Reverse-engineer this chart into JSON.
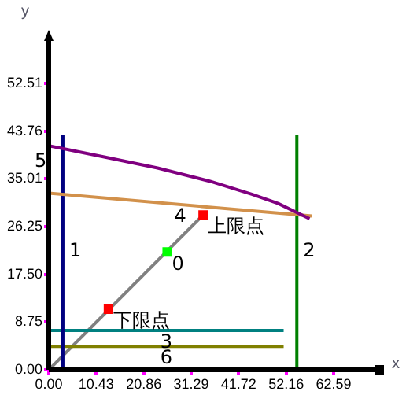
{
  "chart_data": {
    "type": "line",
    "xlabel": "x",
    "ylabel": "y",
    "xlim": [
      0,
      72.6
    ],
    "ylim": [
      0,
      60.6
    ],
    "xticks": [
      {
        "value": 0,
        "label": "0.00"
      },
      {
        "value": 10.43,
        "label": "10.43"
      },
      {
        "value": 20.86,
        "label": "20.86"
      },
      {
        "value": 31.29,
        "label": "31.29"
      },
      {
        "value": 41.72,
        "label": "41.72"
      },
      {
        "value": 52.16,
        "label": "52.16"
      },
      {
        "value": 62.59,
        "label": "62.59"
      }
    ],
    "yticks": [
      {
        "value": 0,
        "label": "0.00"
      },
      {
        "value": 8.75,
        "label": "8.75"
      },
      {
        "value": 17.5,
        "label": "17.50"
      },
      {
        "value": 26.25,
        "label": "26.25"
      },
      {
        "value": 35.01,
        "label": "35.01"
      },
      {
        "value": 43.76,
        "label": "43.76"
      },
      {
        "value": 52.51,
        "label": "52.51"
      }
    ],
    "grid": false,
    "legend": false,
    "marker": "none",
    "series": [
      {
        "color": "#800080",
        "x": [
          0,
          12.4,
          23.9,
          35.3,
          44.6,
          50.4,
          57.3
        ],
        "values": [
          41.1,
          39.0,
          37.0,
          34.6,
          32.2,
          30.5,
          27.7
        ]
      },
      {
        "name": "4",
        "color": "#d2914b",
        "x": [
          0,
          57.8
        ],
        "values": [
          32.4,
          28.2
        ]
      },
      {
        "name": "1",
        "color": "#000080",
        "x": [
          3.1,
          3.1
        ],
        "values": [
          0.5,
          43
        ]
      },
      {
        "name": "2",
        "color": "#008000",
        "x": [
          54.5,
          54.5
        ],
        "values": [
          0.5,
          43
        ]
      },
      {
        "name": "3",
        "color": "#008080",
        "x": [
          0,
          51.6
        ],
        "values": [
          7.2,
          7.2
        ]
      },
      {
        "name": "6",
        "color": "#808000",
        "x": [
          0,
          51.6
        ],
        "values": [
          4.3,
          4.3
        ]
      },
      {
        "color": "#808080",
        "x": [
          0,
          33.9
        ],
        "values": [
          0,
          28.4
        ]
      },
      {
        "type": "scatter",
        "name": "下限点",
        "marker": "square",
        "color": "#ff0000",
        "x": [
          13.1
        ],
        "values": [
          11.1
        ]
      },
      {
        "type": "scatter",
        "name": "0",
        "marker": "square",
        "color": "#00ff00",
        "x": [
          26
        ],
        "values": [
          21.6
        ]
      },
      {
        "type": "scatter",
        "name": "上限点",
        "marker": "square",
        "color": "#ff0000",
        "x": [
          33.9
        ],
        "values": [
          28.4
        ]
      }
    ],
    "annotations": [
      "5"
    ]
  }
}
